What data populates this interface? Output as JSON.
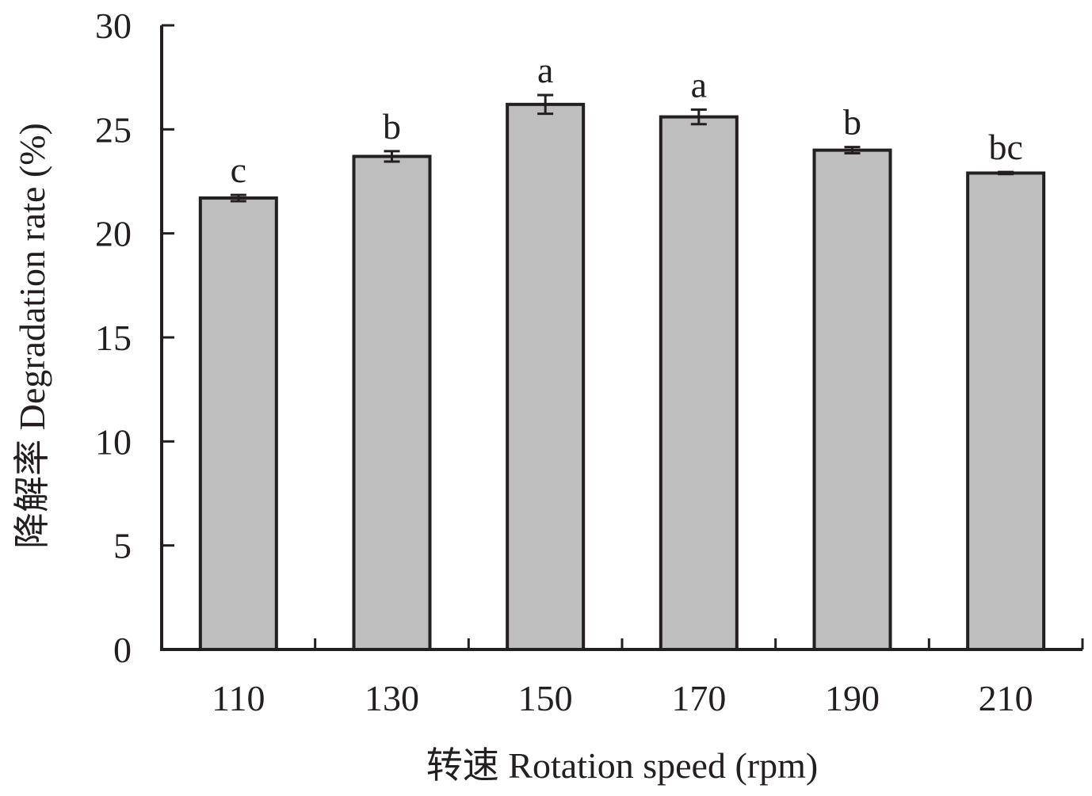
{
  "colors": {
    "bar_fill": "#bebebe",
    "bar_stroke": "#231f20",
    "axis": "#231f20",
    "text": "#231f20",
    "background": "#ffffff"
  },
  "chart_data": {
    "type": "bar",
    "title": "",
    "xlabel": "转速 Rotation speed (rpm)",
    "ylabel": "降解率 Degradation rate (%)",
    "categories": [
      "110",
      "130",
      "150",
      "170",
      "190",
      "210"
    ],
    "values": [
      21.7,
      23.7,
      26.2,
      25.6,
      24.0,
      22.9
    ],
    "errors": [
      0.15,
      0.25,
      0.45,
      0.35,
      0.15,
      0.05
    ],
    "significance_labels": [
      "c",
      "b",
      "a",
      "a",
      "b",
      "bc"
    ],
    "ylim": [
      0,
      30
    ],
    "yticks": [
      "0",
      "5",
      "10",
      "15",
      "20",
      "25",
      "30"
    ],
    "grid": false,
    "legend": "none"
  }
}
